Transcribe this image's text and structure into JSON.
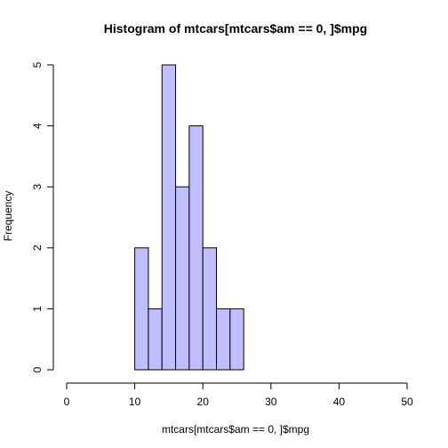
{
  "chart_data": {
    "type": "bar",
    "title": "Histogram of mtcars[mtcars$am == 0, ]$mpg",
    "xlabel": "mtcars[mtcars$am == 0, ]$mpg",
    "ylabel": "Frequency",
    "xlim": [
      0,
      50
    ],
    "ylim": [
      0,
      5
    ],
    "x_ticks": [
      "0",
      "10",
      "20",
      "30",
      "40",
      "50"
    ],
    "y_ticks": [
      "0",
      "1",
      "2",
      "3",
      "4",
      "5"
    ],
    "bins": [
      {
        "start": 10,
        "end": 12,
        "count": 2
      },
      {
        "start": 12,
        "end": 14,
        "count": 1
      },
      {
        "start": 14,
        "end": 16,
        "count": 5
      },
      {
        "start": 16,
        "end": 18,
        "count": 3
      },
      {
        "start": 18,
        "end": 20,
        "count": 4
      },
      {
        "start": 20,
        "end": 22,
        "count": 2
      },
      {
        "start": 22,
        "end": 24,
        "count": 1
      },
      {
        "start": 24,
        "end": 26,
        "count": 1
      }
    ],
    "bar_color": "#bfbfff",
    "bar_border_color": "#000000",
    "grid": false,
    "legend": "none"
  }
}
